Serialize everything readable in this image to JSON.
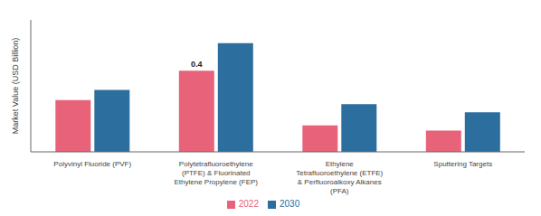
{
  "chart_data": {
    "type": "bar",
    "categories": [
      "Polyvinyl Fluoride (PVF)",
      "Polytetrafluoroethylene\n(PTFE) & Fluorinated\nEthylene Propylene (FEP)",
      "Ethylene\nTetrafluoroethylene (ETFE)\n& Perfluoroalkoxy Alkanes\n(PFA)",
      "Sputtering Targets"
    ],
    "series": [
      {
        "name": "2022",
        "color": "#e8637a",
        "values": [
          0.255,
          0.4,
          0.13,
          0.105
        ]
      },
      {
        "name": "2030",
        "color": "#2c6e9e",
        "values": [
          0.305,
          0.535,
          0.235,
          0.195
        ]
      }
    ],
    "ylabel": "Market Value (USD Billion)",
    "ylim": [
      0,
      0.65
    ],
    "tick_labels": "x",
    "grid": false,
    "legend": "bottom",
    "annotations": [
      {
        "text": "0.4",
        "series": "2022",
        "x": "Polytetrafluoroethylene\n(PTFE) & Fluorinated\nEthylene Propylene (FEP)",
        "y": 0.4
      }
    ]
  }
}
